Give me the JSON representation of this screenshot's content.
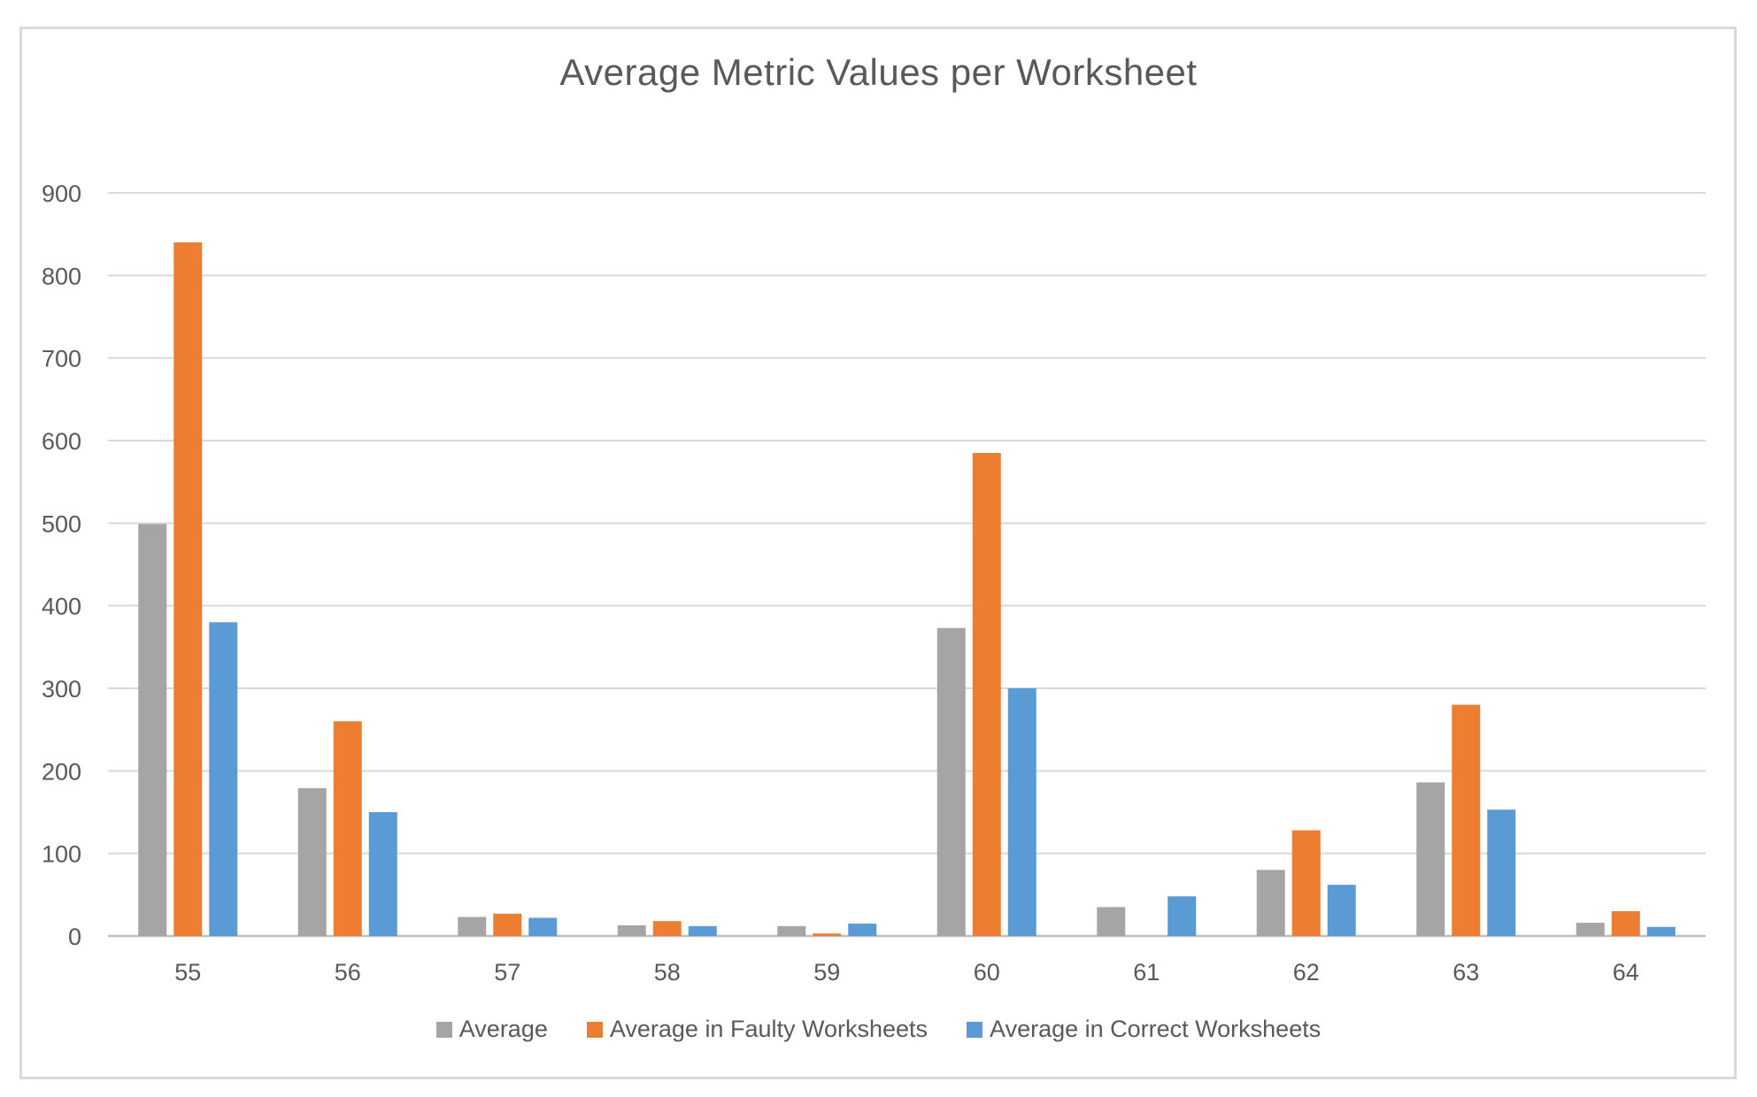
{
  "chart_data": {
    "type": "bar",
    "title": "Average Metric Values per Worksheet",
    "xlabel": "",
    "ylabel": "",
    "ylim": [
      0,
      900
    ],
    "yticks": [
      0,
      100,
      200,
      300,
      400,
      500,
      600,
      700,
      800,
      900
    ],
    "grid": true,
    "legend_position": "bottom",
    "categories": [
      "55",
      "56",
      "57",
      "58",
      "59",
      "60",
      "61",
      "62",
      "63",
      "64"
    ],
    "series": [
      {
        "name": "Average",
        "color": "#a5a5a5",
        "values": [
          499,
          179,
          23,
          13,
          12,
          373,
          35,
          80,
          186,
          16
        ]
      },
      {
        "name": "Average in Faulty Worksheets",
        "color": "#ed7d31",
        "values": [
          840,
          260,
          27,
          18,
          3,
          585,
          0,
          128,
          280,
          30
        ]
      },
      {
        "name": "Average in Correct Worksheets",
        "color": "#5b9bd5",
        "values": [
          380,
          150,
          22,
          12,
          15,
          300,
          48,
          62,
          153,
          11
        ]
      }
    ]
  }
}
